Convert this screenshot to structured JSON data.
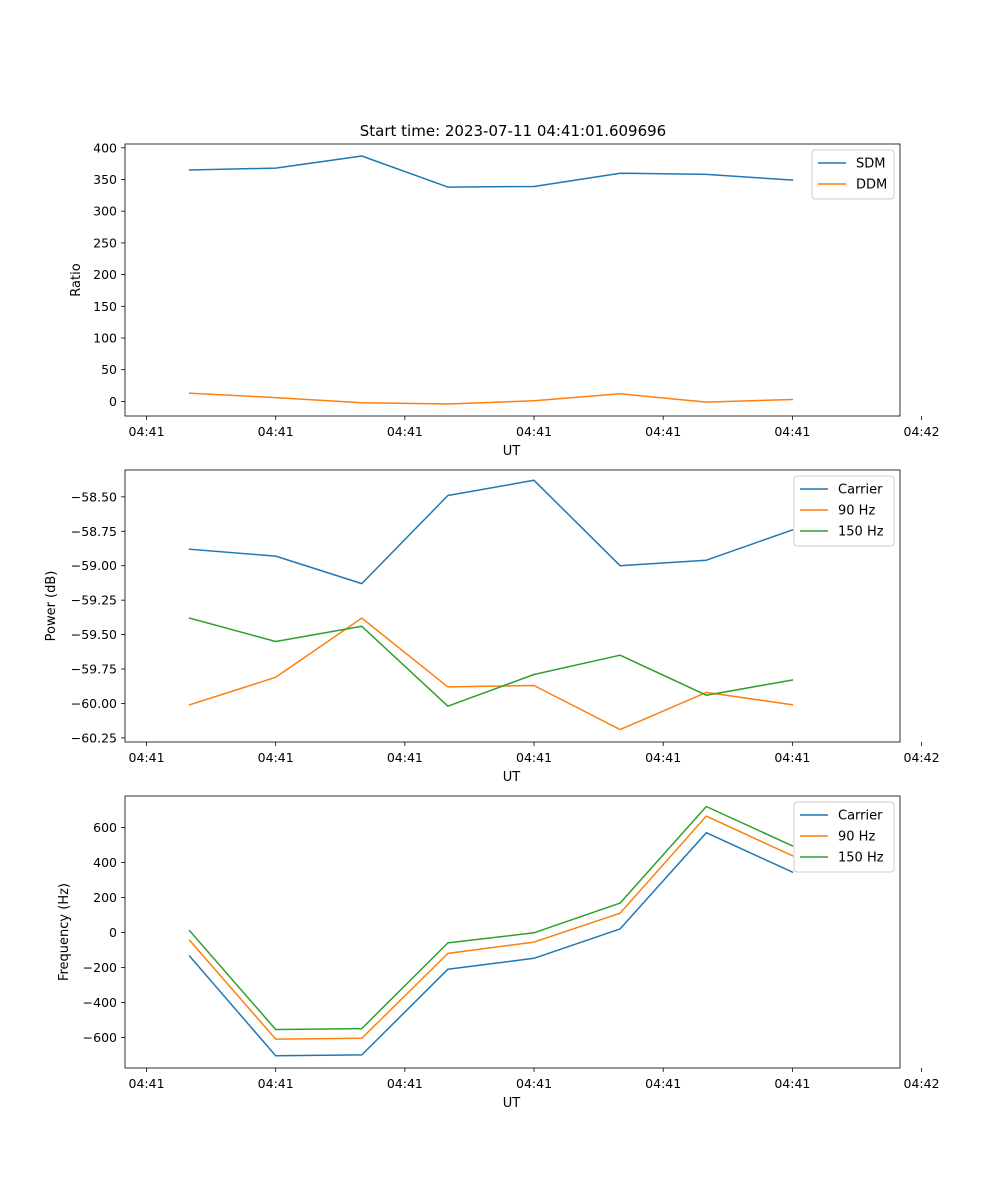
{
  "figure": {
    "title": "Start time: 2023-07-11 04:41:01.609696"
  },
  "colors": {
    "blue": "#1f77b4",
    "orange": "#ff7f0e",
    "green": "#2ca02c"
  },
  "chart_data": [
    {
      "type": "line",
      "title": "Start time: 2023-07-11 04:41:01.609696",
      "xlabel": "UT",
      "ylabel": "Ratio",
      "x": [
        1,
        2,
        3,
        4,
        5,
        6,
        7,
        8
      ],
      "xlim": [
        0.25,
        9.25
      ],
      "x_ticks": [
        0.5,
        2,
        3.5,
        5,
        6.5,
        8,
        9.5
      ],
      "x_tick_labels": [
        "04:41",
        "04:41",
        "04:41",
        "04:41",
        "04:41",
        "04:41",
        "04:42"
      ],
      "ylim": [
        -23,
        406
      ],
      "y_ticks": [
        0,
        50,
        100,
        150,
        200,
        250,
        300,
        350,
        400
      ],
      "y_tick_labels": [
        "0",
        "50",
        "100",
        "150",
        "200",
        "250",
        "300",
        "350",
        "400"
      ],
      "legend": "top-right",
      "series": [
        {
          "name": "SDM",
          "color": "#1f77b4",
          "values": [
            365,
            368,
            387,
            338,
            339,
            360,
            358,
            349
          ]
        },
        {
          "name": "DDM",
          "color": "#ff7f0e",
          "values": [
            13,
            6,
            -2,
            -4,
            1,
            12,
            -1,
            3
          ]
        }
      ]
    },
    {
      "type": "line",
      "title": "",
      "xlabel": "UT",
      "ylabel": "Power (dB)",
      "x": [
        1,
        2,
        3,
        4,
        5,
        6,
        7,
        8
      ],
      "xlim": [
        0.25,
        9.25
      ],
      "x_ticks": [
        0.5,
        2,
        3.5,
        5,
        6.5,
        8,
        9.5
      ],
      "x_tick_labels": [
        "04:41",
        "04:41",
        "04:41",
        "04:41",
        "04:41",
        "04:41",
        "04:42"
      ],
      "ylim": [
        -60.28,
        -58.305
      ],
      "y_ticks": [
        -58.5,
        -58.75,
        -59.0,
        -59.25,
        -59.5,
        -59.75,
        -60.0,
        -60.25
      ],
      "y_tick_labels": [
        "−58.50",
        "−58.75",
        "−59.00",
        "−59.25",
        "−59.50",
        "−59.75",
        "−60.00",
        "−60.25"
      ],
      "legend": "top-right",
      "series": [
        {
          "name": "Carrier",
          "color": "#1f77b4",
          "values": [
            -58.88,
            -58.93,
            -59.13,
            -58.49,
            -58.38,
            -59.0,
            -58.96,
            -58.74
          ]
        },
        {
          "name": "90 Hz",
          "color": "#ff7f0e",
          "values": [
            -60.01,
            -59.81,
            -59.38,
            -59.88,
            -59.87,
            -60.19,
            -59.92,
            -60.01
          ]
        },
        {
          "name": "150 Hz",
          "color": "#2ca02c",
          "values": [
            -59.38,
            -59.55,
            -59.44,
            -60.02,
            -59.79,
            -59.65,
            -59.94,
            -59.83
          ]
        }
      ]
    },
    {
      "type": "line",
      "title": "",
      "xlabel": "UT",
      "ylabel": "Frequency (Hz)",
      "x": [
        1,
        2,
        3,
        4,
        5,
        6,
        7,
        8
      ],
      "xlim": [
        0.25,
        9.25
      ],
      "x_ticks": [
        0.5,
        2,
        3.5,
        5,
        6.5,
        8,
        9.5
      ],
      "x_tick_labels": [
        "04:41",
        "04:41",
        "04:41",
        "04:41",
        "04:41",
        "04:41",
        "04:42"
      ],
      "ylim": [
        -775,
        780
      ],
      "y_ticks": [
        600,
        400,
        200,
        0,
        -200,
        -400,
        -600
      ],
      "y_tick_labels": [
        "600",
        "400",
        "200",
        "0",
        "−200",
        "−400",
        "−600"
      ],
      "legend": "top-right",
      "series": [
        {
          "name": "Carrier",
          "color": "#1f77b4",
          "values": [
            -135,
            -705,
            -700,
            -210,
            -148,
            20,
            570,
            345
          ]
        },
        {
          "name": "90 Hz",
          "color": "#ff7f0e",
          "values": [
            -45,
            -610,
            -605,
            -120,
            -55,
            110,
            665,
            438
          ]
        },
        {
          "name": "150 Hz",
          "color": "#2ca02c",
          "values": [
            10,
            -555,
            -550,
            -60,
            -2,
            168,
            720,
            495
          ]
        }
      ]
    }
  ]
}
